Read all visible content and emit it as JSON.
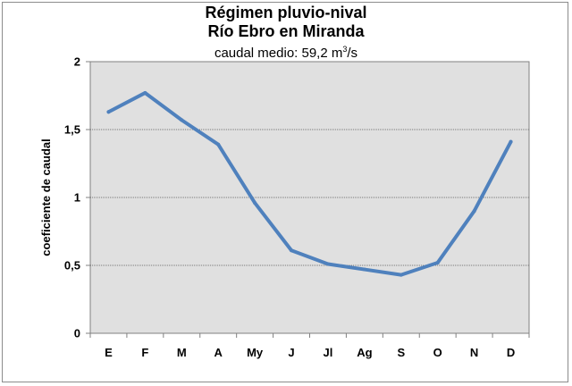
{
  "chart_data": {
    "type": "line",
    "title": "Régimen pluvio-nival",
    "subtitle": "Río Ebro en Miranda",
    "caption_prefix": "caudal medio: 59,2 m",
    "caption_exp": "3",
    "caption_suffix": "/s",
    "xlabel": "",
    "ylabel": "coeficiente de caudal",
    "categories": [
      "E",
      "F",
      "M",
      "A",
      "My",
      "J",
      "Jl",
      "Ag",
      "S",
      "O",
      "N",
      "D"
    ],
    "values": [
      1.63,
      1.77,
      1.57,
      1.39,
      0.96,
      0.61,
      0.51,
      0.47,
      0.43,
      0.52,
      0.9,
      1.41
    ],
    "ylim": [
      0,
      2
    ],
    "yticks": [
      0,
      0.5,
      1,
      1.5,
      2
    ],
    "ytick_labels": [
      "0",
      "0,5",
      "1",
      "1,5",
      "2"
    ],
    "grid": true,
    "line_color": "#4f81bd",
    "plot_background": "#e0e0e0"
  }
}
